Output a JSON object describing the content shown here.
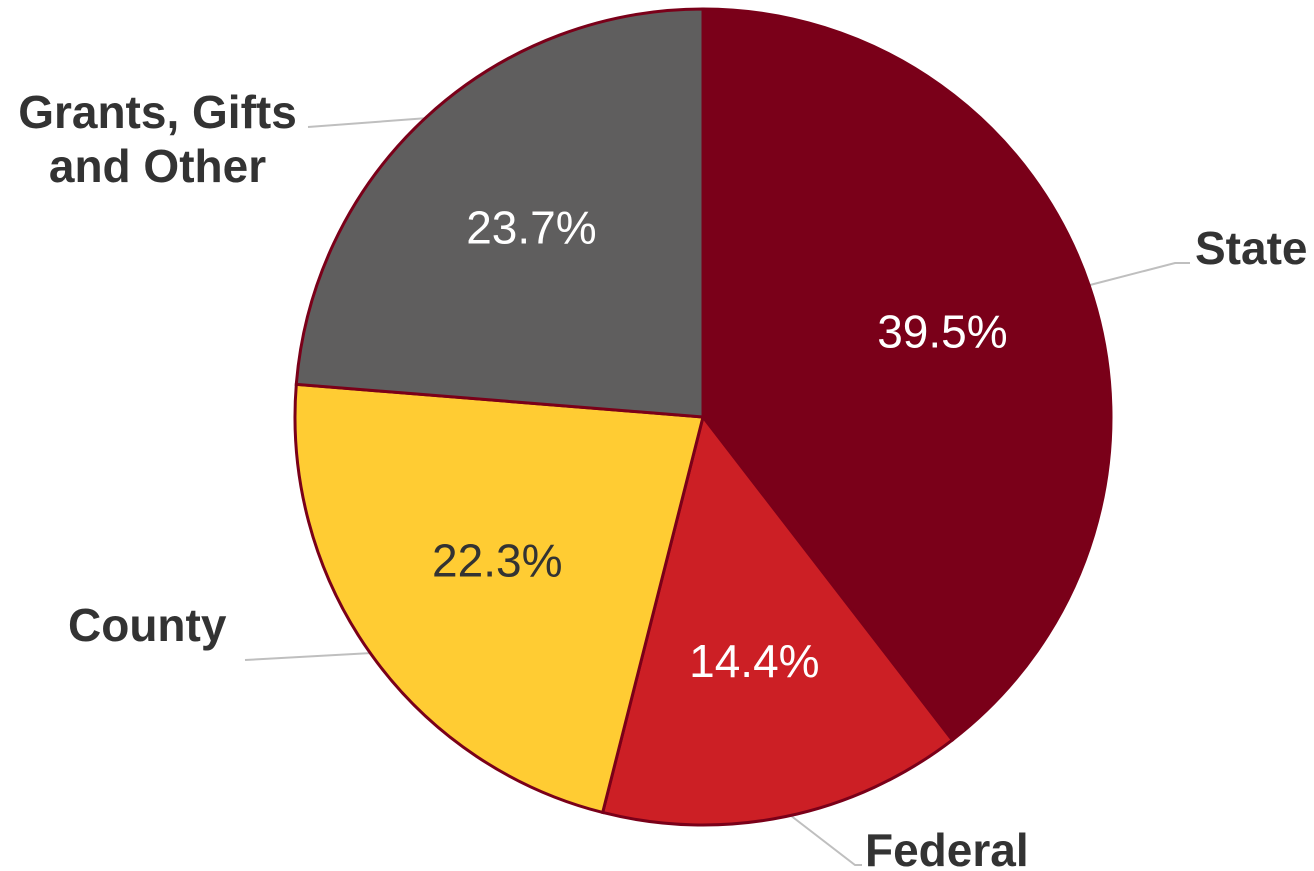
{
  "chart_data": {
    "type": "pie",
    "categories": [
      "State",
      "Federal",
      "County",
      "Grants, Gifts and Other"
    ],
    "values": [
      39.5,
      14.4,
      22.3,
      23.7
    ],
    "value_labels": [
      "39.5%",
      "14.4%",
      "22.3%",
      "23.7%"
    ],
    "colors": [
      "#7a0019",
      "#cc1f25",
      "#ffcc33",
      "#5f5e5e"
    ],
    "label_colors": [
      "#ffffff",
      "#ffffff",
      "#333333",
      "#ffffff"
    ]
  }
}
